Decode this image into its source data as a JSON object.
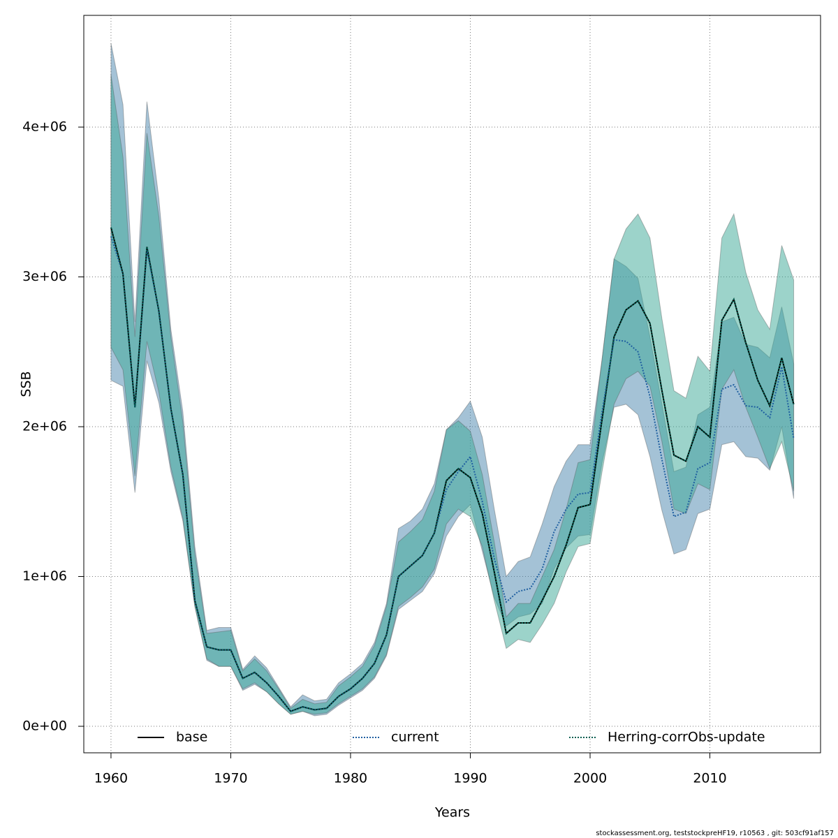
{
  "chart_data": {
    "type": "line",
    "xlabel": "Years",
    "ylabel": "SSB",
    "footnote": "stockassessment.org, teststockpreHF19, r10563 , git: 503cf91af157",
    "x": [
      1960,
      1961,
      1962,
      1963,
      1964,
      1965,
      1966,
      1967,
      1968,
      1969,
      1970,
      1971,
      1972,
      1973,
      1974,
      1975,
      1976,
      1977,
      1978,
      1979,
      1980,
      1981,
      1982,
      1983,
      1984,
      1985,
      1986,
      1987,
      1988,
      1989,
      1990,
      1991,
      1992,
      1993,
      1994,
      1995,
      1996,
      1997,
      1998,
      1999,
      2000,
      2001,
      2002,
      2003,
      2004,
      2005,
      2006,
      2007,
      2008,
      2009,
      2010,
      2011,
      2012,
      2013,
      2014,
      2015,
      2016,
      2017
    ],
    "xlim": [
      1957.73,
      2019.24
    ],
    "xticks": [
      1960,
      1970,
      1980,
      1990,
      2000,
      2010
    ],
    "ylim": [
      -177000.0,
      4746000.0
    ],
    "yticks": [
      {
        "value": 0,
        "label": "0e+00"
      },
      {
        "value": 1000000,
        "label": "1e+06"
      },
      {
        "value": 2000000,
        "label": "2e+06"
      },
      {
        "value": 3000000,
        "label": "3e+06"
      },
      {
        "value": 4000000,
        "label": "4e+06"
      }
    ],
    "grid": true,
    "legend": "bottom",
    "series": [
      {
        "name": "base",
        "color": "#000000",
        "linestyle": "solid",
        "values": [
          3330000.0,
          3020000.0,
          2130000.0,
          3200000.0,
          2770000.0,
          2120000.0,
          1680000.0,
          840000.0,
          530000.0,
          510000.0,
          510000.0,
          320000.0,
          360000.0,
          290000.0,
          200000.0,
          100000.0,
          130000.0,
          110000.0,
          120000.0,
          200000.0,
          250000.0,
          320000.0,
          420000.0,
          610000.0,
          1000000.0,
          1070000.0,
          1140000.0,
          1290000.0,
          1640000.0,
          1720000.0,
          1660000.0,
          1420000.0,
          1030000.0,
          620000.0,
          690000.0,
          690000.0,
          840000.0,
          1000000.0,
          1210000.0,
          1460000.0,
          1480000.0,
          2050000.0,
          2600000.0,
          2780000.0,
          2840000.0,
          2690000.0,
          2240000.0,
          1810000.0,
          1770000.0,
          2000000.0,
          1930000.0,
          2710000.0,
          2850000.0,
          2560000.0,
          2310000.0,
          2140000.0,
          2460000.0,
          2150000.0
        ]
      },
      {
        "name": "current",
        "color": "#1f5fa0",
        "linestyle": "dotted",
        "band_color": "#4a86ad",
        "values": [
          3270000.0,
          3020000.0,
          2130000.0,
          3180000.0,
          2770000.0,
          2120000.0,
          1680000.0,
          840000.0,
          530000.0,
          510000.0,
          510000.0,
          320000.0,
          360000.0,
          290000.0,
          200000.0,
          100000.0,
          130000.0,
          110000.0,
          120000.0,
          200000.0,
          250000.0,
          320000.0,
          420000.0,
          610000.0,
          1000000.0,
          1070000.0,
          1140000.0,
          1290000.0,
          1580000.0,
          1700000.0,
          1800000.0,
          1500000.0,
          1120000.0,
          830000.0,
          900000.0,
          920000.0,
          1050000.0,
          1300000.0,
          1450000.0,
          1550000.0,
          1560000.0,
          2100000.0,
          2580000.0,
          2570000.0,
          2500000.0,
          2200000.0,
          1780000.0,
          1400000.0,
          1430000.0,
          1720000.0,
          1760000.0,
          2250000.0,
          2280000.0,
          2140000.0,
          2130000.0,
          2060000.0,
          2400000.0,
          1920000.0
        ],
        "upper": [
          4560000.0,
          4150000.0,
          2700000.0,
          4170000.0,
          3520000.0,
          2650000.0,
          2100000.0,
          1200000.0,
          640000.0,
          660000.0,
          660000.0,
          380000.0,
          470000.0,
          390000.0,
          260000.0,
          130000.0,
          210000.0,
          170000.0,
          180000.0,
          290000.0,
          350000.0,
          420000.0,
          560000.0,
          820000.0,
          1320000.0,
          1370000.0,
          1450000.0,
          1620000.0,
          1980000.0,
          2060000.0,
          2170000.0,
          1930000.0,
          1450000.0,
          1000000.0,
          1100000.0,
          1130000.0,
          1350000.0,
          1600000.0,
          1770000.0,
          1880000.0,
          1880000.0,
          2450000.0,
          3120000.0,
          3070000.0,
          2990000.0,
          2600000.0,
          2150000.0,
          1700000.0,
          1730000.0,
          2080000.0,
          2130000.0,
          2700000.0,
          2730000.0,
          2550000.0,
          2530000.0,
          2460000.0,
          2800000.0,
          2420000.0
        ],
        "lower": [
          2310000.0,
          2270000.0,
          1560000.0,
          2440000.0,
          2160000.0,
          1700000.0,
          1370000.0,
          800000.0,
          440000.0,
          400000.0,
          400000.0,
          240000.0,
          280000.0,
          230000.0,
          150000.0,
          80000.0,
          100000.0,
          70000.0,
          80000.0,
          140000.0,
          190000.0,
          240000.0,
          320000.0,
          470000.0,
          780000.0,
          840000.0,
          900000.0,
          1020000.0,
          1270000.0,
          1400000.0,
          1480000.0,
          1170000.0,
          860000.0,
          670000.0,
          730000.0,
          750000.0,
          820000.0,
          1050000.0,
          1190000.0,
          1270000.0,
          1280000.0,
          1760000.0,
          2130000.0,
          2150000.0,
          2080000.0,
          1800000.0,
          1440000.0,
          1150000.0,
          1180000.0,
          1420000.0,
          1450000.0,
          1880000.0,
          1900000.0,
          1800000.0,
          1790000.0,
          1710000.0,
          2000000.0,
          1520000.0
        ]
      },
      {
        "name": "Herring-corrObs-update",
        "color": "#005f50",
        "linestyle": "dotted",
        "band_color": "#3aa896",
        "values": [
          3330000.0,
          3020000.0,
          2130000.0,
          3200000.0,
          2770000.0,
          2120000.0,
          1680000.0,
          840000.0,
          530000.0,
          510000.0,
          510000.0,
          320000.0,
          360000.0,
          290000.0,
          200000.0,
          100000.0,
          130000.0,
          110000.0,
          120000.0,
          200000.0,
          250000.0,
          320000.0,
          420000.0,
          610000.0,
          1000000.0,
          1070000.0,
          1140000.0,
          1290000.0,
          1640000.0,
          1720000.0,
          1660000.0,
          1420000.0,
          1030000.0,
          620000.0,
          690000.0,
          690000.0,
          840000.0,
          1000000.0,
          1210000.0,
          1460000.0,
          1480000.0,
          2050000.0,
          2600000.0,
          2780000.0,
          2840000.0,
          2690000.0,
          2240000.0,
          1810000.0,
          1770000.0,
          2000000.0,
          1930000.0,
          2710000.0,
          2850000.0,
          2560000.0,
          2310000.0,
          2140000.0,
          2460000.0,
          2150000.0
        ],
        "upper": [
          4350000.0,
          3800000.0,
          2600000.0,
          3960000.0,
          3400000.0,
          2600000.0,
          2030000.0,
          1150000.0,
          620000.0,
          630000.0,
          640000.0,
          370000.0,
          450000.0,
          370000.0,
          250000.0,
          120000.0,
          180000.0,
          150000.0,
          160000.0,
          270000.0,
          330000.0,
          400000.0,
          540000.0,
          800000.0,
          1230000.0,
          1300000.0,
          1380000.0,
          1570000.0,
          1980000.0,
          2040000.0,
          1970000.0,
          1680000.0,
          1230000.0,
          730000.0,
          820000.0,
          820000.0,
          1000000.0,
          1180000.0,
          1450000.0,
          1760000.0,
          1780000.0,
          2450000.0,
          3120000.0,
          3320000.0,
          3420000.0,
          3260000.0,
          2720000.0,
          2240000.0,
          2190000.0,
          2470000.0,
          2370000.0,
          3260000.0,
          3420000.0,
          3030000.0,
          2780000.0,
          2650000.0,
          3210000.0,
          2980000.0
        ],
        "lower": [
          2530000.0,
          2380000.0,
          1670000.0,
          2570000.0,
          2230000.0,
          1730000.0,
          1390000.0,
          800000.0,
          450000.0,
          400000.0,
          400000.0,
          250000.0,
          290000.0,
          230000.0,
          150000.0,
          80000.0,
          100000.0,
          80000.0,
          90000.0,
          150000.0,
          200000.0,
          250000.0,
          330000.0,
          480000.0,
          800000.0,
          860000.0,
          930000.0,
          1050000.0,
          1350000.0,
          1450000.0,
          1400000.0,
          1200000.0,
          840000.0,
          520000.0,
          580000.0,
          560000.0,
          680000.0,
          820000.0,
          1030000.0,
          1200000.0,
          1220000.0,
          1700000.0,
          2150000.0,
          2320000.0,
          2370000.0,
          2270000.0,
          1900000.0,
          1450000.0,
          1420000.0,
          1620000.0,
          1580000.0,
          2250000.0,
          2380000.0,
          2130000.0,
          1930000.0,
          1720000.0,
          1900000.0,
          1570000.0
        ]
      }
    ]
  }
}
